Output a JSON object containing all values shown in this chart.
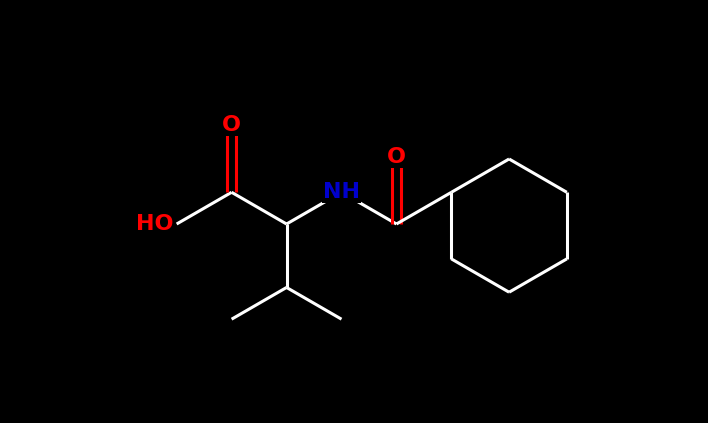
{
  "background_color": "#000000",
  "bond_color": "#ffffff",
  "atom_colors": {
    "O": "#ff0000",
    "N": "#0000cc",
    "HO": "#ff0000"
  },
  "bond_width": 2.2,
  "font_size": 16,
  "fig_width": 7.08,
  "fig_height": 4.23,
  "dpi": 100,
  "xlim": [
    0,
    10
  ],
  "ylim": [
    0,
    6
  ]
}
